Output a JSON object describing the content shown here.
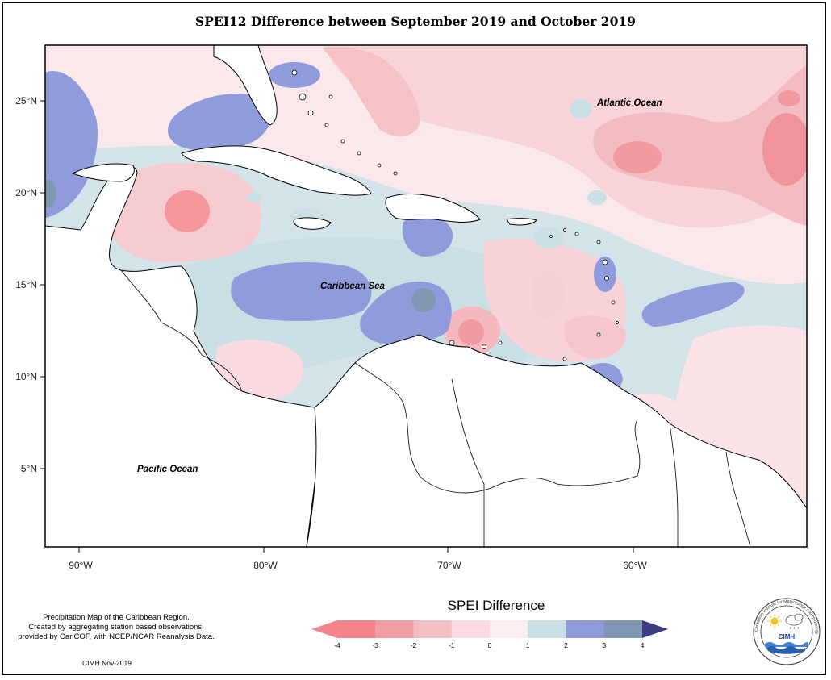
{
  "title": "SPEI12 Difference between September 2019 and October 2019",
  "ocean_labels": {
    "atlantic": "Atlantic Ocean",
    "caribbean": "Caribbean Sea",
    "pacific": "Pacific Ocean"
  },
  "axes": {
    "y_ticks": [
      "25°N",
      "20°N",
      "15°N",
      "10°N",
      "5°N"
    ],
    "x_ticks": [
      "90°W",
      "80°W",
      "70°W",
      "60°W"
    ]
  },
  "legend": {
    "title": "SPEI Difference",
    "ticks": [
      "-4",
      "-3",
      "-2",
      "-1",
      "0",
      "1",
      "2",
      "3",
      "4"
    ],
    "colors": [
      "#f4838a",
      "#f09ea3",
      "#f2c0c4",
      "#fadbdf",
      "#fdeeef",
      "#c9dfe4",
      "#8f9bdb",
      "#7f97b0",
      "#5b6490",
      "#3b3f80"
    ]
  },
  "credits": {
    "lines": [
      "Precipitation Map of the Caribbean Region.",
      "Created by aggregating station based observations,",
      "provided by CariCOF, with NCEP/NCAR Reanalysis Data."
    ],
    "date": "CIMH Nov-2019"
  },
  "logo": {
    "text": "CIMH",
    "ring_text": "Caribbean Institute for Meteorology and Hydrology"
  }
}
